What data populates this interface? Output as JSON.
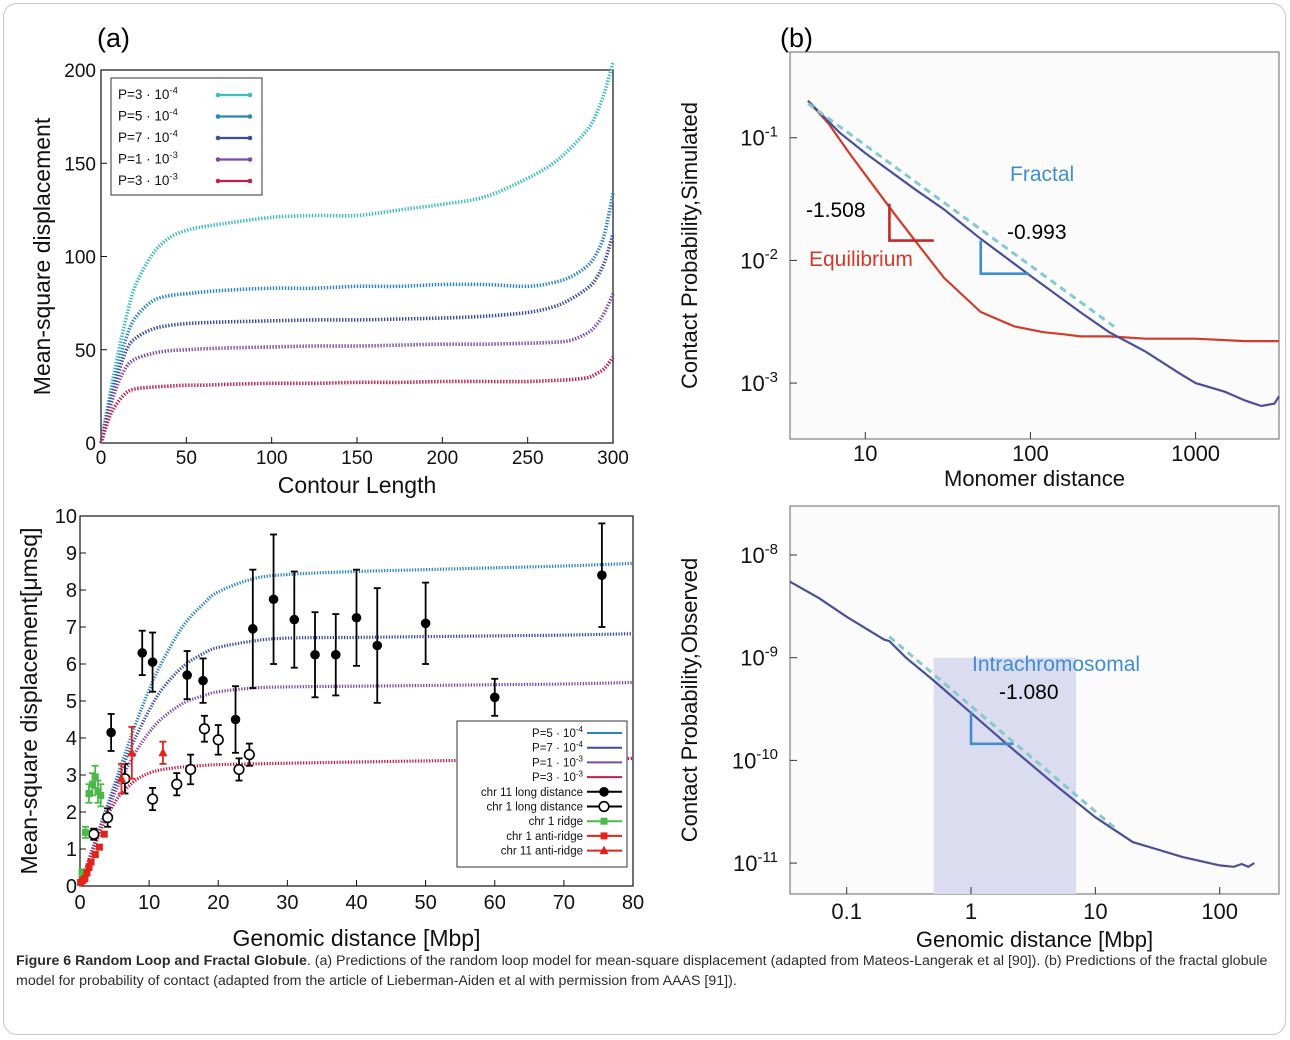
{
  "panel_labels": {
    "a": "(a)",
    "b": "(b)"
  },
  "caption": {
    "title": "Figure 6 Random Loop and Fractal Globule",
    "text": ". (a) Predictions of the random loop model for mean-square displacement (adapted from Mateos-Langerak et al [90]). (b) Predictions of the fractal globule model for probability of contact (adapted from the article of Lieberman-Aiden et al with permission from AAAS [91])."
  },
  "chart_data": [
    {
      "id": "top_left",
      "type": "line",
      "xlabel": "Contour Length",
      "ylabel": "Mean-square displacement",
      "xlim": [
        0,
        300
      ],
      "ylim": [
        0,
        200
      ],
      "xticks": [
        0,
        50,
        100,
        150,
        200,
        250,
        300
      ],
      "yticks": [
        0,
        50,
        100,
        150,
        200
      ],
      "legend_position": "top-left",
      "x": [
        0,
        5,
        10,
        15,
        20,
        30,
        40,
        50,
        60,
        75,
        100,
        125,
        150,
        175,
        200,
        225,
        250,
        265,
        275,
        285,
        290,
        295,
        300
      ],
      "series": [
        {
          "name": "P=3 · 10-4",
          "color": "#3dbcbf",
          "values": [
            0,
            25,
            48,
            68,
            84,
            101,
            110,
            114,
            116,
            118,
            121,
            122,
            122,
            125,
            128,
            132,
            142,
            150,
            158,
            168,
            176,
            188,
            204
          ]
        },
        {
          "name": "P=5 · 10-4",
          "color": "#2b84c2",
          "values": [
            0,
            22,
            42,
            57,
            67,
            76,
            79,
            80,
            81,
            82,
            83,
            83,
            84,
            84,
            85,
            85,
            84,
            86,
            89,
            95,
            101,
            112,
            134
          ]
        },
        {
          "name": "P=7 · 10-4",
          "color": "#3b4ba4",
          "values": [
            0,
            20,
            37,
            50,
            56,
            61,
            63,
            64,
            64.5,
            65,
            65.5,
            66,
            66,
            66.5,
            67,
            68,
            70,
            73,
            77,
            83,
            88,
            97,
            112
          ]
        },
        {
          "name": "P=1 · 10-3",
          "color": "#7a4aab",
          "values": [
            0,
            18,
            32,
            41,
            45,
            48,
            49.5,
            50,
            50.5,
            51,
            51.5,
            52,
            52,
            52.5,
            53,
            53,
            53.5,
            54,
            55,
            59,
            63,
            70,
            80
          ]
        },
        {
          "name": "P=3 · 10-3",
          "color": "#c41e4a",
          "values": [
            0,
            14,
            22,
            27,
            29,
            30,
            30.5,
            31,
            31,
            31.5,
            32,
            32,
            32.5,
            32.5,
            33,
            33,
            33,
            33.5,
            34,
            35,
            37,
            40,
            46
          ]
        }
      ]
    },
    {
      "id": "top_right",
      "type": "line",
      "xlabel": "Monomer distance",
      "ylabel": "Contact Probability,Simulated",
      "x_scale": "log",
      "y_scale": "log",
      "xlim": [
        3.5,
        3200
      ],
      "ylim": [
        0.00035,
        0.5
      ],
      "xticks": [
        10,
        100,
        1000
      ],
      "xtick_labels": [
        "10",
        "100",
        "1000"
      ],
      "yticks": [
        0.1,
        0.01,
        0.001
      ],
      "ytick_labels": [
        "10-1",
        "10-2",
        "10-3"
      ],
      "series": [
        {
          "name": "Equilibrium",
          "color": "#d23a2a",
          "x": [
            4.5,
            6,
            8,
            10,
            15,
            20,
            30,
            50,
            80,
            120,
            160,
            200,
            300,
            500,
            1000,
            2000,
            3200
          ],
          "values": [
            0.2,
            0.13,
            0.075,
            0.05,
            0.024,
            0.0145,
            0.0072,
            0.0038,
            0.0029,
            0.0026,
            0.0025,
            0.0024,
            0.0024,
            0.0023,
            0.0023,
            0.0022,
            0.0022
          ]
        },
        {
          "name": "Fractal",
          "color": "#4a4f9a",
          "x": [
            4.5,
            7,
            10,
            20,
            30,
            50,
            100,
            200,
            300,
            500,
            800,
            1000,
            1500,
            2000,
            2500,
            3000,
            3200
          ],
          "values": [
            0.2,
            0.11,
            0.075,
            0.038,
            0.026,
            0.015,
            0.0075,
            0.0038,
            0.0026,
            0.0018,
            0.0012,
            0.001,
            0.00085,
            0.00072,
            0.00065,
            0.00068,
            0.00078
          ]
        },
        {
          "name": "",
          "color": "#86c9cf",
          "dashed": true,
          "x": [
            4.5,
            320
          ],
          "values": [
            0.19,
            0.0029
          ]
        }
      ],
      "annotations": [
        {
          "text": "-1.508",
          "color": "#000000"
        },
        {
          "text": "Equilibrium",
          "color": "#d23a2a"
        },
        {
          "text": "Fractal",
          "color": "#3f8ed0"
        },
        {
          "text": "-0.993",
          "color": "#000000"
        }
      ]
    },
    {
      "id": "bottom_left",
      "type": "line",
      "xlabel": "Genomic distance [Mbp]",
      "ylabel": "Mean-square displacement[μmsq]",
      "xlim": [
        0,
        80
      ],
      "ylim": [
        0,
        10
      ],
      "xticks": [
        0,
        10,
        20,
        30,
        40,
        50,
        60,
        70,
        80
      ],
      "yticks": [
        0,
        1,
        2,
        3,
        4,
        5,
        6,
        7,
        8,
        9,
        10
      ],
      "legend_position": "bottom-right",
      "x": [
        0,
        1,
        2,
        3,
        4,
        5,
        6,
        8,
        10,
        12,
        15,
        18,
        20,
        25,
        30,
        40,
        50,
        60,
        70,
        80
      ],
      "series": [
        {
          "name": "P=5 · 10-4",
          "color": "#2b84c2",
          "values": [
            0,
            0.55,
            1.1,
            1.65,
            2.2,
            2.75,
            3.3,
            4.35,
            5.3,
            6.1,
            7.05,
            7.65,
            7.95,
            8.3,
            8.42,
            8.5,
            8.55,
            8.6,
            8.65,
            8.72
          ]
        },
        {
          "name": "P=7 · 10-4",
          "color": "#3b4ba4",
          "values": [
            0,
            0.55,
            1.1,
            1.65,
            2.15,
            2.65,
            3.15,
            4.0,
            4.75,
            5.35,
            5.95,
            6.3,
            6.45,
            6.62,
            6.7,
            6.72,
            6.74,
            6.76,
            6.78,
            6.82
          ]
        },
        {
          "name": "P=1 · 10-3",
          "color": "#7a4aab",
          "values": [
            0,
            0.55,
            1.1,
            1.6,
            2.05,
            2.5,
            2.9,
            3.6,
            4.15,
            4.55,
            4.95,
            5.15,
            5.25,
            5.35,
            5.38,
            5.4,
            5.42,
            5.44,
            5.46,
            5.5
          ]
        },
        {
          "name": "P=3 · 10-3",
          "color": "#c41e4a",
          "values": [
            0,
            0.5,
            1.0,
            1.5,
            1.9,
            2.25,
            2.5,
            2.85,
            3.05,
            3.15,
            3.22,
            3.26,
            3.28,
            3.3,
            3.32,
            3.35,
            3.38,
            3.4,
            3.42,
            3.45
          ]
        }
      ],
      "scatter": [
        {
          "name": "chr 11 long distance",
          "color": "#000000",
          "marker": "filled-circle",
          "points": [
            [
              4.5,
              4.15,
              0.5
            ],
            [
              9,
              6.3,
              0.6
            ],
            [
              10.5,
              6.05,
              0.8
            ],
            [
              15.5,
              5.7,
              0.65
            ],
            [
              17.8,
              5.55,
              0.6
            ],
            [
              22.5,
              4.5,
              0.9
            ],
            [
              25,
              6.95,
              1.6
            ],
            [
              28,
              7.75,
              1.75
            ],
            [
              31,
              7.2,
              1.3
            ],
            [
              34,
              6.25,
              1.15
            ],
            [
              37,
              6.25,
              1.1
            ],
            [
              40,
              7.25,
              1.3
            ],
            [
              43,
              6.5,
              1.55
            ],
            [
              50,
              7.1,
              1.1
            ],
            [
              60,
              5.1,
              0.5
            ],
            [
              75.5,
              8.4,
              1.4
            ]
          ]
        },
        {
          "name": "chr 1 long distance",
          "color": "#000000",
          "marker": "open-circle",
          "points": [
            [
              2,
              1.4,
              0.15
            ],
            [
              4,
              1.85,
              0.25
            ],
            [
              6.5,
              2.9,
              0.4
            ],
            [
              10.5,
              2.35,
              0.3
            ],
            [
              14,
              2.75,
              0.3
            ],
            [
              16,
              3.15,
              0.4
            ],
            [
              18,
              4.25,
              0.35
            ],
            [
              20,
              3.95,
              0.4
            ],
            [
              23,
              3.15,
              0.3
            ],
            [
              24.5,
              3.55,
              0.3
            ]
          ]
        },
        {
          "name": "chr 1 ridge",
          "color": "#4cb848",
          "marker": "filled-square",
          "points": [
            [
              0.3,
              0.35,
              0.1
            ],
            [
              0.8,
              1.45,
              0.15
            ],
            [
              1.3,
              2.5,
              0.25
            ],
            [
              1.8,
              2.75,
              0.3
            ],
            [
              2.2,
              2.95,
              0.3
            ],
            [
              2.6,
              2.55,
              0.3
            ],
            [
              3.0,
              2.45,
              0.3
            ]
          ]
        },
        {
          "name": "chr 1 anti-ridge",
          "color": "#e2231a",
          "marker": "filled-square",
          "points": [
            [
              0.1,
              0.1,
              0.05
            ],
            [
              0.4,
              0.15,
              0.05
            ],
            [
              0.7,
              0.2,
              0.05
            ],
            [
              1.0,
              0.35,
              0.05
            ],
            [
              1.3,
              0.5,
              0.05
            ],
            [
              1.6,
              0.65,
              0.05
            ],
            [
              2.2,
              0.85,
              0.05
            ],
            [
              2.8,
              1.05,
              0.05
            ],
            [
              3.5,
              1.4,
              0.05
            ]
          ]
        },
        {
          "name": "chr 11 anti-ridge",
          "color": "#e2231a",
          "marker": "filled-triangle",
          "points": [
            [
              6.0,
              2.9,
              0.4
            ],
            [
              7.5,
              3.6,
              0.7
            ],
            [
              12.0,
              3.6,
              0.3
            ]
          ]
        }
      ]
    },
    {
      "id": "bottom_right",
      "type": "line",
      "xlabel": "Genomic distance [Mbp]",
      "ylabel": "Contact Probability,Observed",
      "x_scale": "log",
      "y_scale": "log",
      "xlim": [
        0.035,
        300
      ],
      "ylim": [
        5e-12,
        3e-08
      ],
      "xticks": [
        0.1,
        1,
        10,
        100
      ],
      "xtick_labels": [
        "0.1",
        "1",
        "10",
        "100"
      ],
      "yticks": [
        1e-08,
        1e-09,
        1e-10,
        1e-11
      ],
      "ytick_labels": [
        "10-8",
        "10-9",
        "10-10",
        "10-11"
      ],
      "shaded_region": [
        0.5,
        7
      ],
      "series": [
        {
          "name": "Intrachromosomal",
          "color": "#4a4f9a",
          "x": [
            0.035,
            0.06,
            0.1,
            0.2,
            0.22,
            0.3,
            0.5,
            1,
            2,
            5,
            10,
            20,
            50,
            100,
            130,
            150,
            170,
            190
          ],
          "values": [
            5.5e-09,
            3.8e-09,
            2.5e-09,
            1.5e-09,
            1.45e-09,
            1e-09,
            6e-10,
            2.9e-10,
            1.4e-10,
            5.5e-11,
            2.8e-11,
            1.6e-11,
            1.15e-11,
            9.5e-12,
            9.2e-12,
            9.8e-12,
            9.2e-12,
            1e-11
          ]
        },
        {
          "name": "",
          "color": "#86c9cf",
          "dashed": true,
          "x": [
            0.22,
            15
          ],
          "values": [
            1.6e-09,
            2.1e-11
          ]
        }
      ],
      "annotations": [
        {
          "text": "Intrachromosomal",
          "color": "#3f8ed0"
        },
        {
          "text": "-1.080",
          "color": "#000000"
        }
      ]
    }
  ]
}
